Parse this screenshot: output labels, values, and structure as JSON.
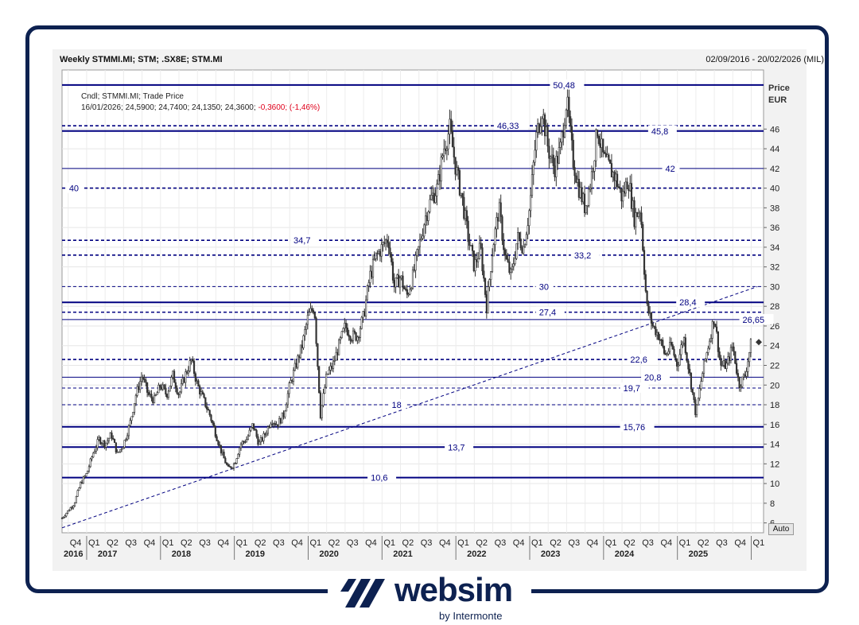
{
  "header": {
    "title": "Weekly STMMI.MI; STM; .SX8E; STM.MI",
    "date_range": "02/09/2016 - 20/02/2026 (MIL)",
    "price_label_1": "Price",
    "price_label_2": "EUR",
    "auto_button": "Auto"
  },
  "legend": {
    "line1": "Cndl; STMMI.MI; Trade Price",
    "line2_values": "16/01/2026; 24,5900; 24,7400; 24,1350; 24,3600;",
    "line2_change": "-0,3600; (-1,46%)"
  },
  "colors": {
    "frame": "#0d2150",
    "level_line": "#000080",
    "candle": "#333333",
    "negative": "#e0001b"
  },
  "brand": {
    "name": "websim",
    "sub": "by Intermonte"
  },
  "chart_data": {
    "type": "candlestick",
    "ylim": [
      5,
      52
    ],
    "y_ticks": [
      6,
      8,
      10,
      12,
      14,
      16,
      18,
      20,
      22,
      24,
      26,
      28,
      30,
      32,
      34,
      36,
      38,
      40,
      42,
      44,
      46
    ],
    "x_quarter_labels": [
      "Q4",
      "Q1",
      "Q2",
      "Q3",
      "Q4",
      "Q1",
      "Q2",
      "Q3",
      "Q4",
      "Q1",
      "Q2",
      "Q3",
      "Q4",
      "Q1",
      "Q2",
      "Q3",
      "Q4",
      "Q1",
      "Q2",
      "Q3",
      "Q4",
      "Q1",
      "Q2",
      "Q3",
      "Q4",
      "Q1",
      "Q2",
      "Q3",
      "Q4",
      "Q1",
      "Q2",
      "Q3",
      "Q4",
      "Q1",
      "Q2",
      "Q3",
      "Q4",
      "Q1"
    ],
    "x_year_labels": [
      "2016",
      "2017",
      "2018",
      "2019",
      "2020",
      "2021",
      "2022",
      "2023",
      "2024",
      "2025"
    ],
    "levels": [
      {
        "value": 50.48,
        "label": "50,48",
        "style": "solid"
      },
      {
        "value": 46.33,
        "label": "46,33",
        "style": "dashed"
      },
      {
        "value": 45.8,
        "label": "45,8",
        "style": "solid"
      },
      {
        "value": 42,
        "label": "42",
        "style": "thin"
      },
      {
        "value": 40,
        "label": "40",
        "style": "dashed"
      },
      {
        "value": 34.7,
        "label": "34,7",
        "style": "dashed"
      },
      {
        "value": 33.2,
        "label": "33,2",
        "style": "dashed"
      },
      {
        "value": 30,
        "label": "30",
        "style": "thindashed"
      },
      {
        "value": 28.4,
        "label": "28,4",
        "style": "solid"
      },
      {
        "value": 27.4,
        "label": "27,4",
        "style": "dashed"
      },
      {
        "value": 26.65,
        "label": "26,65",
        "style": "thin"
      },
      {
        "value": 22.6,
        "label": "22,6",
        "style": "dashed"
      },
      {
        "value": 20.8,
        "label": "20,8",
        "style": "thin"
      },
      {
        "value": 19.7,
        "label": "19,7",
        "style": "thindashed"
      },
      {
        "value": 18,
        "label": "18",
        "style": "thindashed"
      },
      {
        "value": 15.76,
        "label": "15,76",
        "style": "solid"
      },
      {
        "value": 13.7,
        "label": "13,7",
        "style": "solid"
      },
      {
        "value": 10.6,
        "label": "10,6",
        "style": "solid"
      }
    ],
    "trendline": {
      "from": [
        "2016-09",
        5.5
      ],
      "to": [
        "2026-02",
        30
      ]
    },
    "last_close": 24.36,
    "price_path": [
      [
        "2016-09",
        6.5
      ],
      [
        "2016-11",
        8
      ],
      [
        "2016-12",
        10
      ],
      [
        "2017-01",
        11
      ],
      [
        "2017-02",
        13
      ],
      [
        "2017-03",
        14.5
      ],
      [
        "2017-04",
        14
      ],
      [
        "2017-05",
        15
      ],
      [
        "2017-06",
        13
      ],
      [
        "2017-07",
        14
      ],
      [
        "2017-08",
        16
      ],
      [
        "2017-09",
        19
      ],
      [
        "2017-10",
        21
      ],
      [
        "2017-11",
        19
      ],
      [
        "2017-12",
        18.5
      ],
      [
        "2018-01",
        20
      ],
      [
        "2018-02",
        19
      ],
      [
        "2018-03",
        21
      ],
      [
        "2018-04",
        19
      ],
      [
        "2018-05",
        21
      ],
      [
        "2018-06",
        22.5
      ],
      [
        "2018-07",
        20
      ],
      [
        "2018-08",
        18.5
      ],
      [
        "2018-09",
        17
      ],
      [
        "2018-10",
        15
      ],
      [
        "2018-11",
        13
      ],
      [
        "2018-12",
        11.5
      ],
      [
        "2019-01",
        12
      ],
      [
        "2019-02",
        14
      ],
      [
        "2019-03",
        14.5
      ],
      [
        "2019-04",
        16
      ],
      [
        "2019-05",
        14
      ],
      [
        "2019-06",
        15
      ],
      [
        "2019-07",
        16.5
      ],
      [
        "2019-08",
        16
      ],
      [
        "2019-09",
        17
      ],
      [
        "2019-10",
        20
      ],
      [
        "2019-11",
        22
      ],
      [
        "2019-12",
        24
      ],
      [
        "2020-01",
        27
      ],
      [
        "2020-02",
        28
      ],
      [
        "2020-03",
        17
      ],
      [
        "2020-04",
        21
      ],
      [
        "2020-05",
        22
      ],
      [
        "2020-06",
        24
      ],
      [
        "2020-07",
        26
      ],
      [
        "2020-08",
        25
      ],
      [
        "2020-09",
        25
      ],
      [
        "2020-10",
        27
      ],
      [
        "2020-11",
        31
      ],
      [
        "2020-12",
        33
      ],
      [
        "2021-01",
        34
      ],
      [
        "2021-02",
        35
      ],
      [
        "2021-03",
        30
      ],
      [
        "2021-04",
        31
      ],
      [
        "2021-05",
        29
      ],
      [
        "2021-06",
        31
      ],
      [
        "2021-07",
        34
      ],
      [
        "2021-08",
        37
      ],
      [
        "2021-09",
        39
      ],
      [
        "2021-10",
        40
      ],
      [
        "2021-11",
        44
      ],
      [
        "2021-12",
        46
      ],
      [
        "2022-01",
        42
      ],
      [
        "2022-02",
        39
      ],
      [
        "2022-03",
        35
      ],
      [
        "2022-04",
        32
      ],
      [
        "2022-05",
        34
      ],
      [
        "2022-06",
        28
      ],
      [
        "2022-07",
        34
      ],
      [
        "2022-08",
        38
      ],
      [
        "2022-09",
        33
      ],
      [
        "2022-10",
        31
      ],
      [
        "2022-11",
        35
      ],
      [
        "2022-12",
        34
      ],
      [
        "2023-01",
        38
      ],
      [
        "2023-02",
        45
      ],
      [
        "2023-03",
        48
      ],
      [
        "2023-04",
        44
      ],
      [
        "2023-05",
        42
      ],
      [
        "2023-06",
        44
      ],
      [
        "2023-07",
        49
      ],
      [
        "2023-08",
        43
      ],
      [
        "2023-09",
        40
      ],
      [
        "2023-10",
        38
      ],
      [
        "2023-11",
        41
      ],
      [
        "2023-12",
        46
      ],
      [
        "2024-01",
        43
      ],
      [
        "2024-02",
        42
      ],
      [
        "2024-03",
        41
      ],
      [
        "2024-04",
        39
      ],
      [
        "2024-05",
        41
      ],
      [
        "2024-06",
        37
      ],
      [
        "2024-07",
        38
      ],
      [
        "2024-08",
        28
      ],
      [
        "2024-09",
        26
      ],
      [
        "2024-10",
        25
      ],
      [
        "2024-11",
        23
      ],
      [
        "2024-12",
        24
      ],
      [
        "2025-01",
        22
      ],
      [
        "2025-02",
        25
      ],
      [
        "2025-03",
        21
      ],
      [
        "2025-04",
        17
      ],
      [
        "2025-05",
        21
      ],
      [
        "2025-06",
        24
      ],
      [
        "2025-07",
        27
      ],
      [
        "2025-08",
        22
      ],
      [
        "2025-09",
        22
      ],
      [
        "2025-10",
        24
      ],
      [
        "2025-11",
        20
      ],
      [
        "2025-12",
        21
      ],
      [
        "2026-01",
        24.36
      ]
    ]
  }
}
